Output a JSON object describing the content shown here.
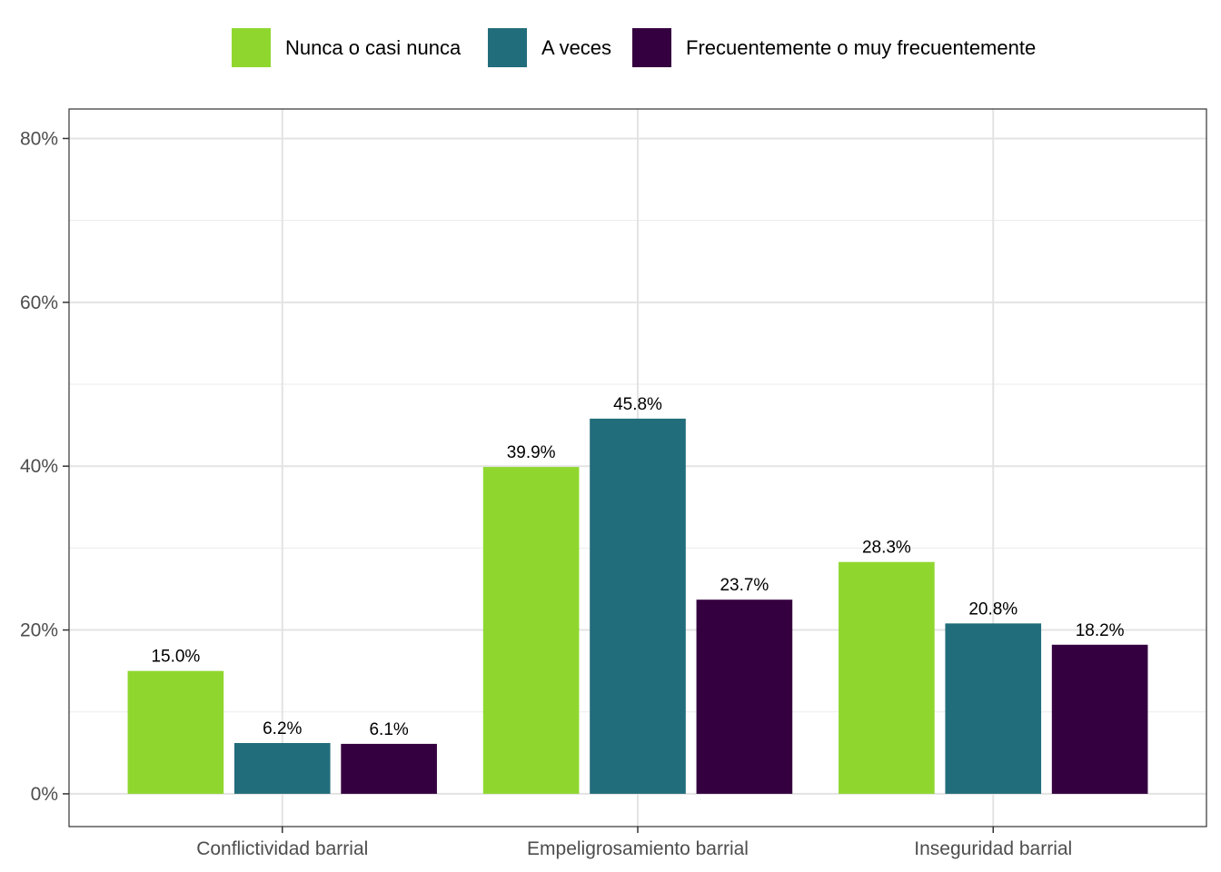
{
  "chart_data": {
    "type": "bar",
    "categories": [
      "Conflictividad barrial",
      "Empeligrosamiento barrial",
      "Inseguridad barrial"
    ],
    "series": [
      {
        "name": "Nunca o casi nunca",
        "color": "#8fd72f",
        "values": [
          15.0,
          39.9,
          28.3
        ],
        "labels": [
          "15.0%",
          "39.9%",
          "28.3%"
        ]
      },
      {
        "name": "A veces",
        "color": "#226d7b",
        "values": [
          6.2,
          45.8,
          20.8
        ],
        "labels": [
          "6.2%",
          "45.8%",
          "20.8%"
        ]
      },
      {
        "name": "Frecuentemente o muy frecuentemente",
        "color": "#35003f",
        "values": [
          6.1,
          23.7,
          18.2
        ],
        "labels": [
          "6.1%",
          "23.7%",
          "18.2%"
        ]
      }
    ],
    "ylim": [
      -4,
      83.6
    ],
    "yticks": [
      0,
      20,
      40,
      60,
      80
    ],
    "ytick_labels": [
      "0%",
      "20%",
      "40%",
      "60%",
      "80%"
    ],
    "grid": true,
    "legend_position": "top"
  }
}
